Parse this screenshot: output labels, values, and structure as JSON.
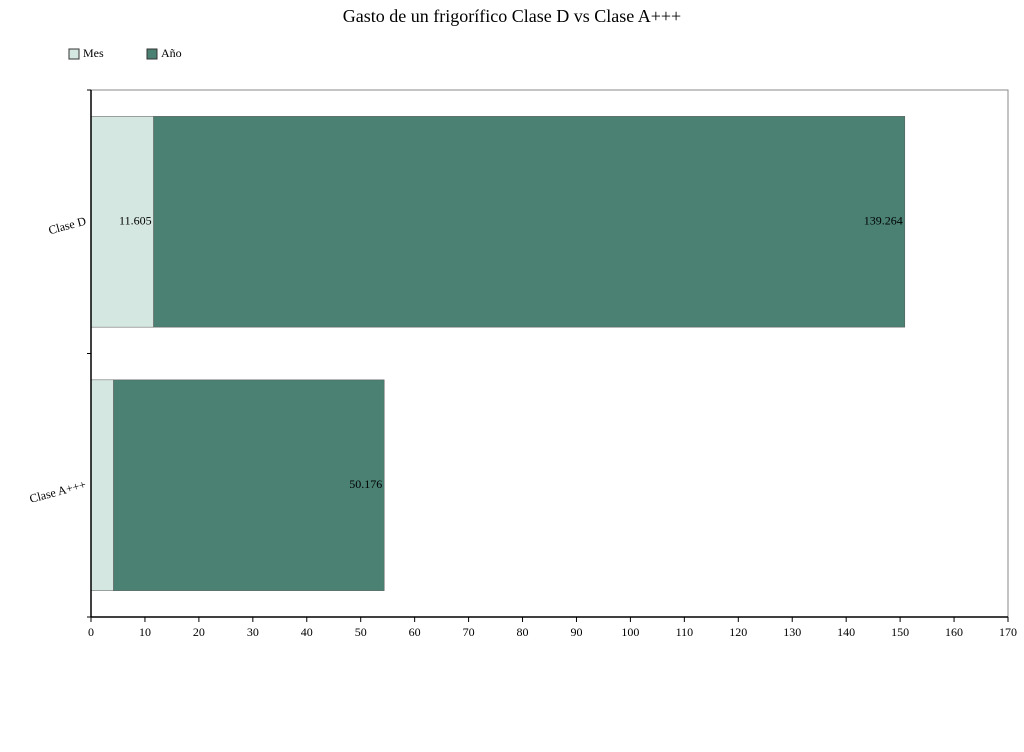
{
  "chart_data": {
    "type": "bar",
    "orientation": "horizontal",
    "stacked": true,
    "title": "Gasto de un frigorífico Clase D vs Clase A+++",
    "categories": [
      "Clase D",
      "Clase A+++"
    ],
    "series": [
      {
        "name": "Mes",
        "color": "#d5e7e1",
        "values": [
          11.605,
          4.181
        ],
        "value_labels": [
          "11.605",
          null
        ]
      },
      {
        "name": "Año",
        "color": "#4a8172",
        "values": [
          139.264,
          50.176
        ],
        "value_labels": [
          "139.264",
          "50.176"
        ]
      }
    ],
    "xlim": [
      0,
      170
    ],
    "xticks": [
      0,
      10,
      20,
      30,
      40,
      50,
      60,
      70,
      80,
      90,
      100,
      110,
      120,
      130,
      140,
      150,
      160,
      170
    ],
    "legend": "top-left"
  }
}
